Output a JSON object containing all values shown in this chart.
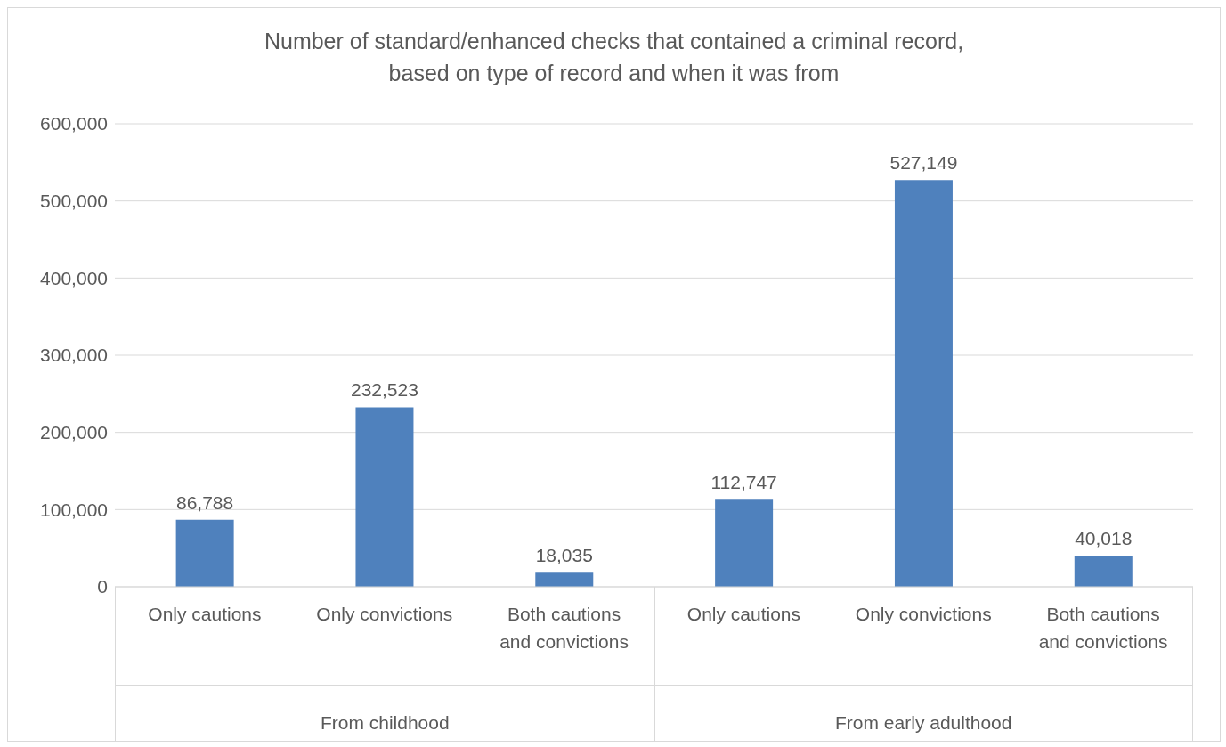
{
  "chart_data": {
    "type": "bar",
    "title": "Number of standard/enhanced checks that contained a criminal record,\nbased on type of record and when it was from",
    "categories": [
      "Only cautions",
      "Only convictions",
      "Both cautions and convictions",
      "Only cautions",
      "Only convictions",
      "Both cautions and convictions"
    ],
    "values": [
      86788,
      232523,
      18035,
      112747,
      527149,
      40018
    ],
    "value_labels": [
      "86,788",
      "232,523",
      "18,035",
      "112,747",
      "527,149",
      "40,018"
    ],
    "color": "#4f81bd",
    "ylim": [
      0,
      600000
    ],
    "yticks": [
      0,
      {
        "value": 100000,
        "label": "100,000"
      },
      {
        "value": 200000,
        "label": "200,000"
      },
      {
        "value": 300000,
        "label": "300,000"
      },
      {
        "value": 400000,
        "label": "400,000"
      },
      {
        "value": 500000,
        "label": "500,000"
      },
      {
        "value": 600000,
        "label": "600,000"
      }
    ],
    "grid": "y",
    "annotations": [
      "From childhood",
      "From early adulthood"
    ]
  }
}
